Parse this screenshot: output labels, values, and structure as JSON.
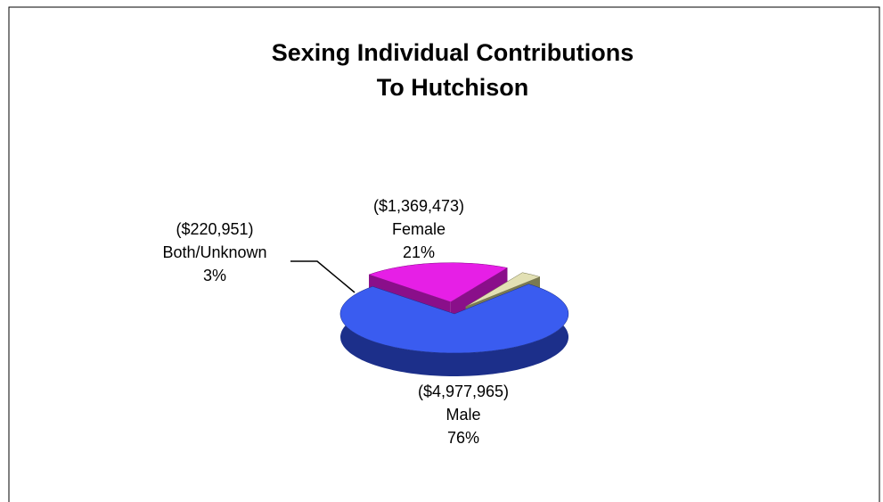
{
  "chart_data": {
    "type": "pie",
    "title": "Sexing Individual Contributions",
    "subtitle": "To Hutchison",
    "categories": [
      "Male",
      "Female",
      "Both/Unknown"
    ],
    "values": [
      76,
      21,
      3
    ],
    "value_labels": [
      "76%",
      "21%",
      "3%"
    ],
    "amount_labels": [
      "($4,977,965)",
      "($1,369,473)",
      "($220,951)"
    ],
    "colors": [
      "#3a5cf0",
      "#e61fe6",
      "#e2e0b4"
    ],
    "side_colors": [
      "#1c2f8a",
      "#8a0f8a",
      "#7a7a52"
    ]
  }
}
